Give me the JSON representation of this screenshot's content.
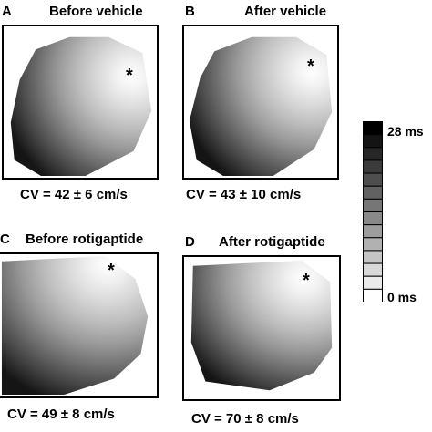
{
  "panels": [
    {
      "letter": "A",
      "title": "Before vehicle",
      "cv": "CV = 42 ± 6 cm/s",
      "marker": "*"
    },
    {
      "letter": "B",
      "title": "After vehicle",
      "cv": "CV = 43 ± 10 cm/s",
      "marker": "*"
    },
    {
      "letter": "C",
      "title": "Before rotigaptide",
      "cv": "CV = 49 ± 8 cm/s",
      "marker": "*"
    },
    {
      "letter": "D",
      "title": "After rotigaptide",
      "cv": "CV = 70 ± 8 cm/s",
      "marker": "*"
    }
  ],
  "scale": {
    "max_label": "28 ms",
    "min_label": "0 ms",
    "steps": 14,
    "colors": {
      "high": "#000000",
      "low": "#ffffff"
    }
  }
}
